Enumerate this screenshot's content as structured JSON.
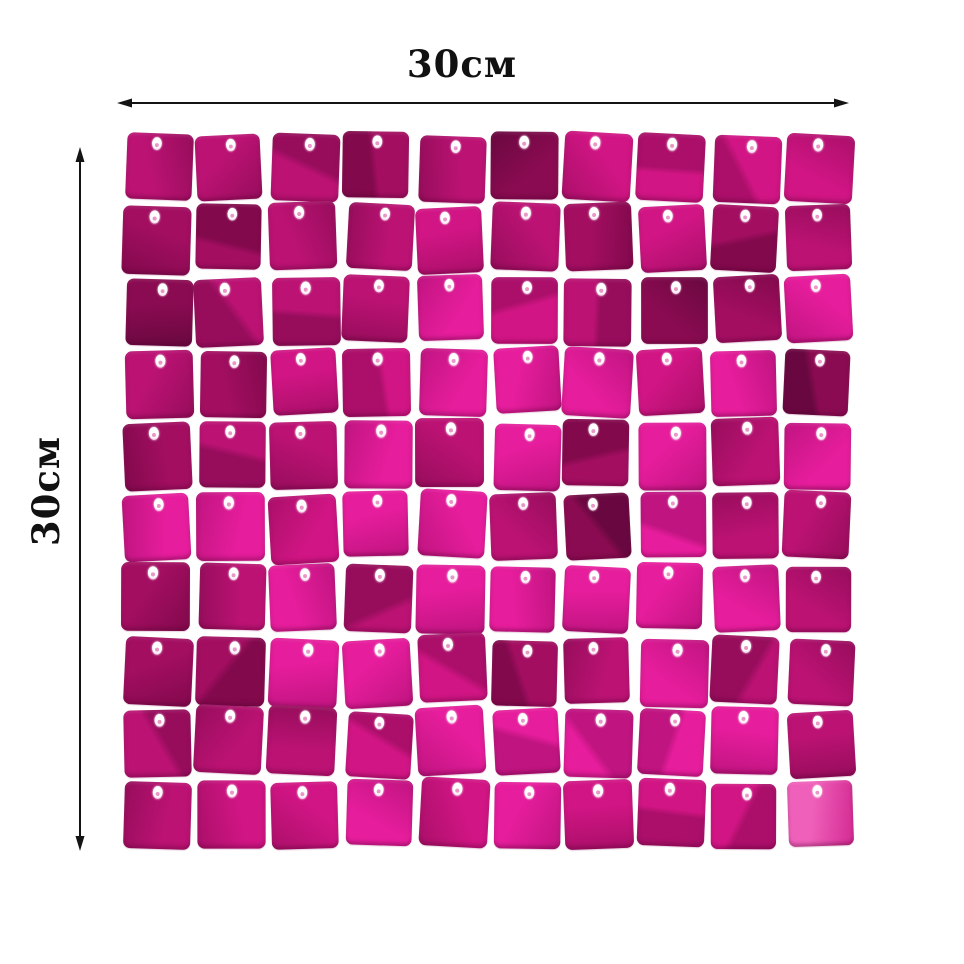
{
  "figure": {
    "background_color": "#ffffff"
  },
  "annotation": {
    "width_label": "30см",
    "height_label": "30см",
    "arrow_color": "#141414",
    "label_color": "#111111"
  },
  "panel": {
    "rows": 10,
    "cols": 10,
    "total_sequins": 100,
    "sequin_shape": "rounded-square",
    "hole_color": "#ffffff",
    "palette": [
      "#8a0b51",
      "#a30e61",
      "#bb1273",
      "#d11584",
      "#e61d9c",
      "#ef60ba"
    ],
    "palette_dark": [
      "#690840",
      "#82094c",
      "#970d5c",
      "#ab0f6a",
      "#c01480",
      "#d42a92"
    ],
    "cells": [
      "2221203333",
      "1122321312",
      "0222432014",
      "2133444340",
      "1224241424",
      "4434420422",
      "1242444442",
      "1144312422",
      "2223444442",
      "2334343335"
    ]
  }
}
